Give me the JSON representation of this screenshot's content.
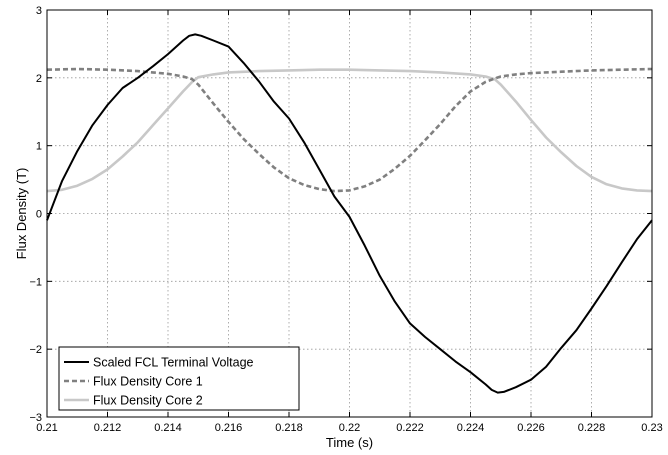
{
  "chart_data": {
    "type": "line",
    "title": "",
    "xlabel": "Time (s)",
    "ylabel": "Flux Density (T)",
    "xlim": [
      0.21,
      0.23
    ],
    "ylim": [
      -3,
      3
    ],
    "xticks": [
      0.21,
      0.212,
      0.214,
      0.216,
      0.218,
      0.22,
      0.222,
      0.224,
      0.226,
      0.228,
      0.23
    ],
    "xtick_labels": [
      "0.21",
      "0.212",
      "0.214",
      "0.216",
      "0.218",
      "0.22",
      "0.222",
      "0.224",
      "0.226",
      "0.228",
      "0.23"
    ],
    "yticks": [
      -3,
      -2,
      -1,
      0,
      1,
      2,
      3
    ],
    "ytick_labels": [
      "−3",
      "−2",
      "−1",
      "0",
      "1",
      "2",
      "3"
    ],
    "grid": true,
    "legend_position": "bottom-left",
    "series": [
      {
        "name": "Scaled FCL Terminal Voltage",
        "color": "#000000",
        "dash": "solid",
        "x": [
          0.21,
          0.2105,
          0.211,
          0.2115,
          0.212,
          0.2125,
          0.213,
          0.2135,
          0.214,
          0.2145,
          0.2147,
          0.2149,
          0.2151,
          0.2155,
          0.216,
          0.2165,
          0.217,
          0.2175,
          0.218,
          0.2185,
          0.219,
          0.2195,
          0.22,
          0.2205,
          0.221,
          0.2215,
          0.222,
          0.2225,
          0.223,
          0.2235,
          0.224,
          0.2245,
          0.2247,
          0.2249,
          0.2251,
          0.2255,
          0.226,
          0.2265,
          0.227,
          0.2275,
          0.228,
          0.2285,
          0.229,
          0.2295,
          0.23
        ],
        "y": [
          -0.1,
          0.48,
          0.92,
          1.3,
          1.6,
          1.85,
          2.0,
          2.17,
          2.35,
          2.55,
          2.62,
          2.64,
          2.62,
          2.55,
          2.46,
          2.22,
          1.95,
          1.65,
          1.4,
          1.05,
          0.65,
          0.25,
          -0.05,
          -0.47,
          -0.92,
          -1.3,
          -1.62,
          -1.82,
          -2.0,
          -2.18,
          -2.34,
          -2.52,
          -2.6,
          -2.64,
          -2.63,
          -2.56,
          -2.45,
          -2.26,
          -1.98,
          -1.72,
          -1.4,
          -1.07,
          -0.72,
          -0.38,
          -0.1
        ]
      },
      {
        "name": "Flux Density Core 1",
        "color": "#808080",
        "dash": "dashed",
        "x": [
          0.21,
          0.211,
          0.212,
          0.213,
          0.214,
          0.2145,
          0.2148,
          0.215,
          0.2155,
          0.216,
          0.2165,
          0.217,
          0.2175,
          0.218,
          0.2185,
          0.219,
          0.2195,
          0.22,
          0.2205,
          0.221,
          0.2215,
          0.222,
          0.2225,
          0.223,
          0.2235,
          0.224,
          0.2245,
          0.2248,
          0.225,
          0.2255,
          0.226,
          0.227,
          0.228,
          0.229,
          0.23
        ],
        "y": [
          2.12,
          2.13,
          2.12,
          2.1,
          2.06,
          2.02,
          1.98,
          1.9,
          1.62,
          1.35,
          1.1,
          0.88,
          0.68,
          0.52,
          0.42,
          0.36,
          0.33,
          0.34,
          0.4,
          0.5,
          0.66,
          0.85,
          1.08,
          1.32,
          1.58,
          1.8,
          1.94,
          1.99,
          2.02,
          2.05,
          2.07,
          2.09,
          2.11,
          2.12,
          2.13
        ]
      },
      {
        "name": "Flux Density Core 2",
        "color": "#c8c8c8",
        "dash": "solid",
        "x": [
          0.21,
          0.2105,
          0.211,
          0.2115,
          0.212,
          0.2125,
          0.213,
          0.2135,
          0.214,
          0.2145,
          0.2148,
          0.215,
          0.2155,
          0.216,
          0.217,
          0.218,
          0.219,
          0.22,
          0.221,
          0.222,
          0.223,
          0.224,
          0.2245,
          0.2248,
          0.225,
          0.2255,
          0.226,
          0.2265,
          0.227,
          0.2275,
          0.228,
          0.2285,
          0.229,
          0.2295,
          0.23
        ],
        "y": [
          0.33,
          0.35,
          0.41,
          0.51,
          0.65,
          0.84,
          1.05,
          1.3,
          1.55,
          1.8,
          1.94,
          2.01,
          2.05,
          2.08,
          2.1,
          2.11,
          2.12,
          2.12,
          2.11,
          2.1,
          2.08,
          2.05,
          2.02,
          1.98,
          1.9,
          1.65,
          1.38,
          1.12,
          0.9,
          0.7,
          0.54,
          0.43,
          0.37,
          0.34,
          0.33
        ]
      }
    ]
  }
}
